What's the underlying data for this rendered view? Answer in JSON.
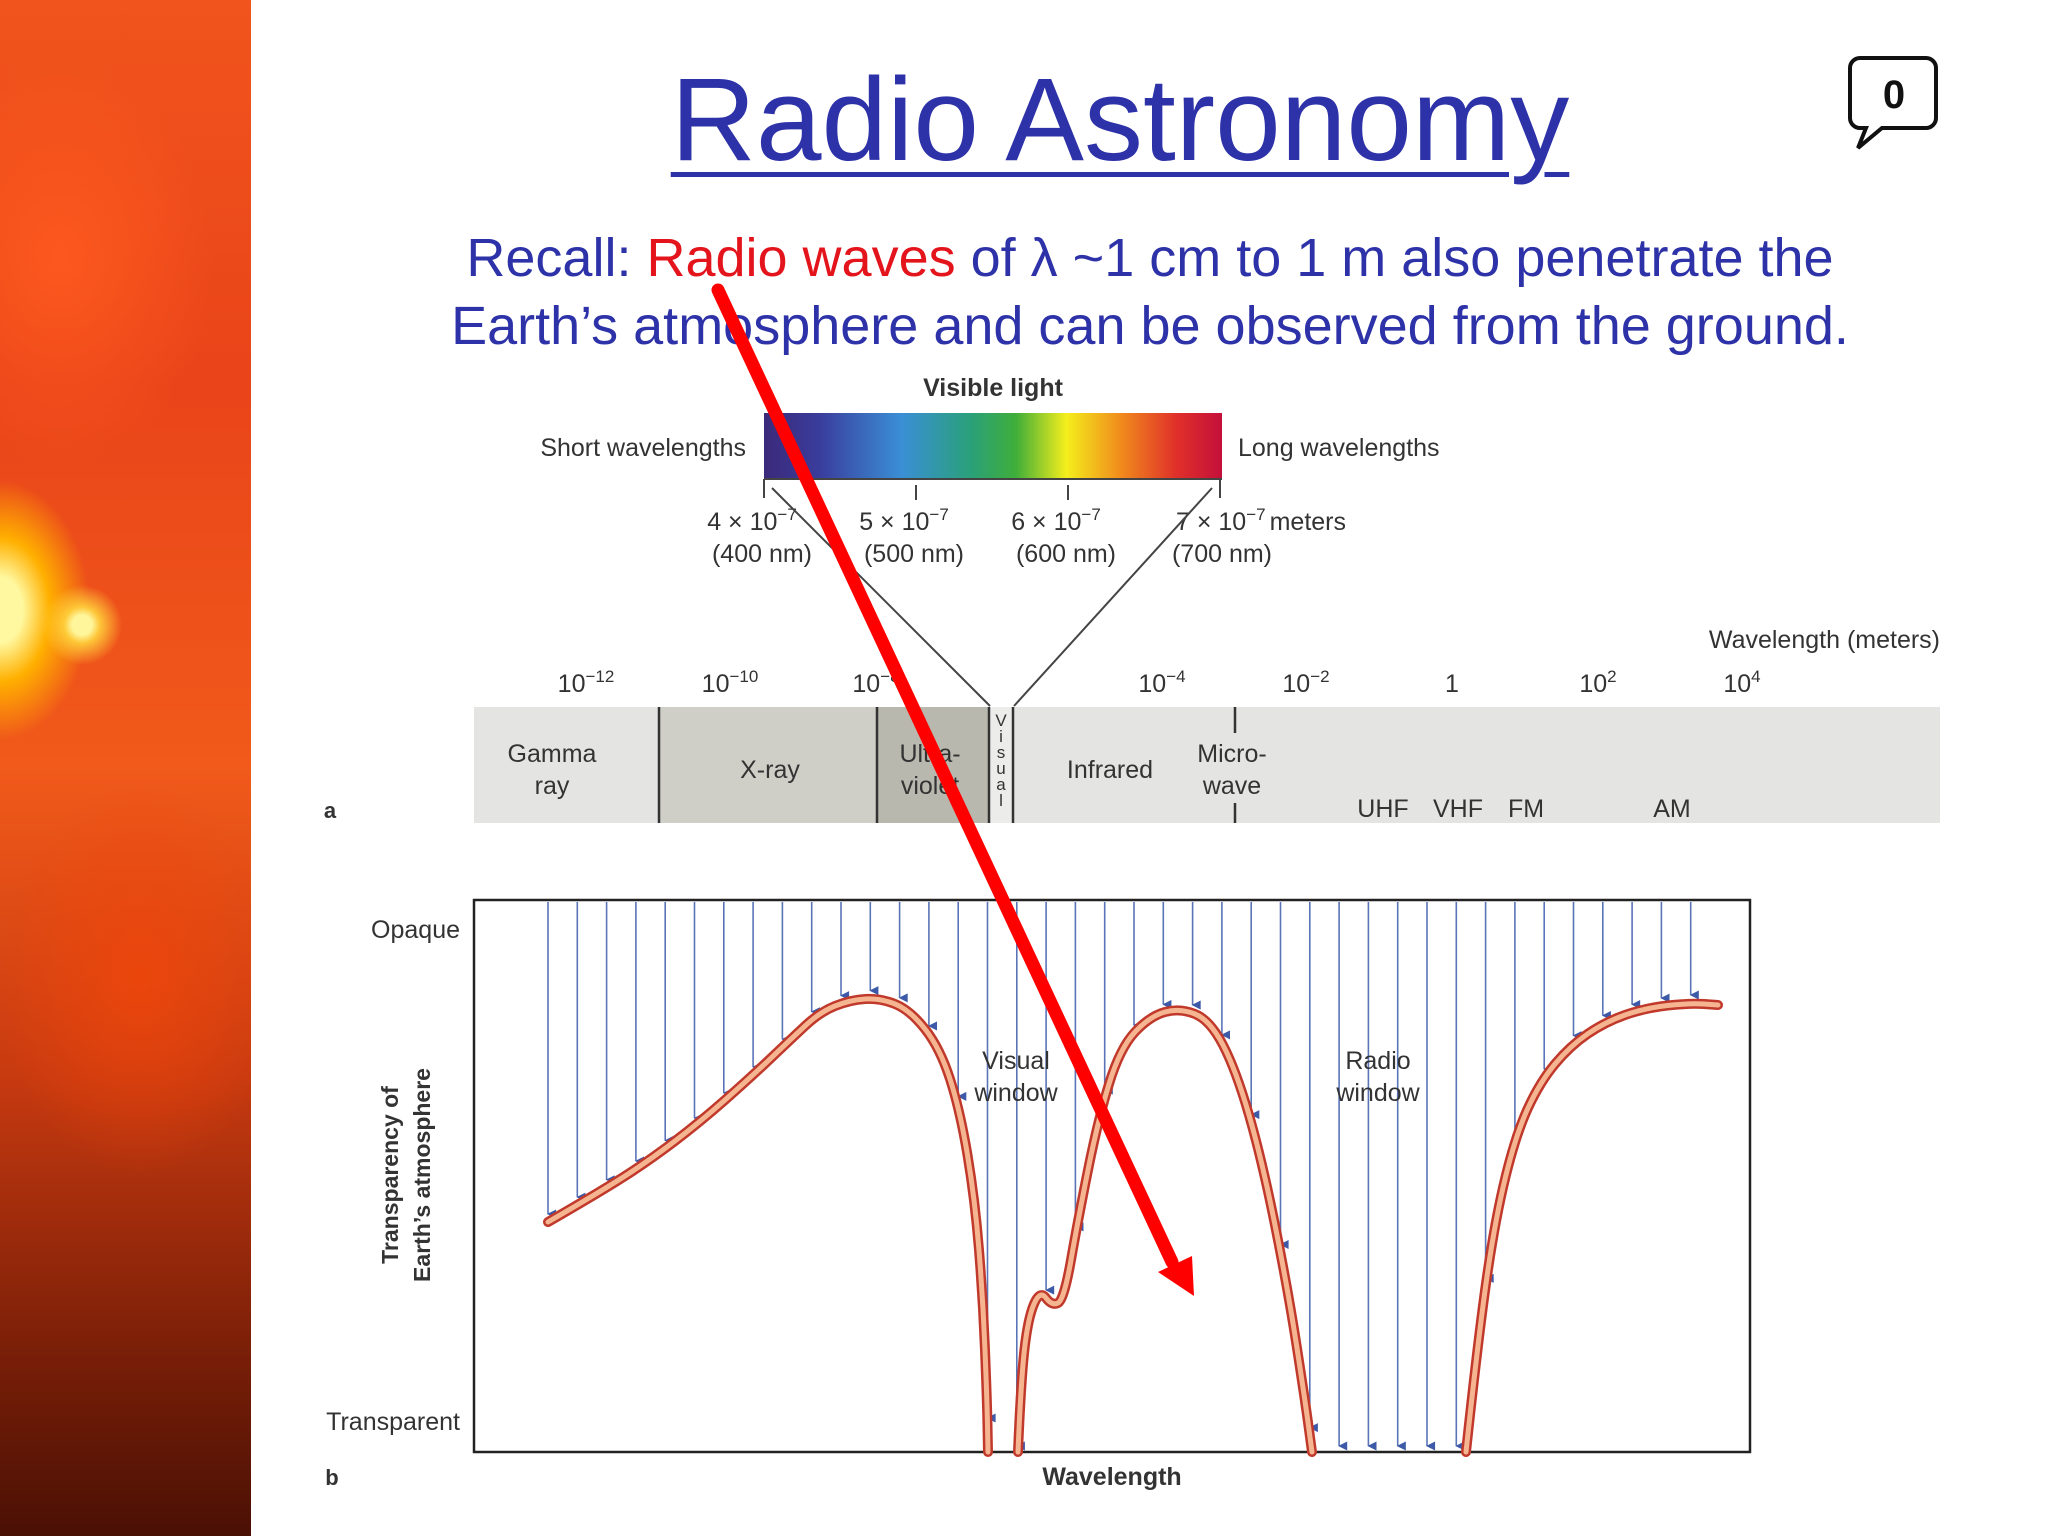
{
  "slide": {
    "title": "Radio Astronomy",
    "badge_count": "0",
    "recall_prefix": "Recall: ",
    "recall_highlight": "Radio waves",
    "recall_rest_line1": " of λ ~1 cm to 1 m also penetrate the",
    "recall_line2": "Earth’s atmosphere and can be observed from the ground."
  },
  "figure_a": {
    "panel_label": "a",
    "visible_light_label": "Visible light",
    "short_label": "Short wavelengths",
    "long_label": "Long wavelengths",
    "visible_ticks": [
      {
        "value": "4 × 10",
        "exp": "−7",
        "nm": "(400 nm)"
      },
      {
        "value": "5 × 10",
        "exp": "−7",
        "nm": "(500 nm)"
      },
      {
        "value": "6 × 10",
        "exp": "−7",
        "nm": "(600 nm)"
      },
      {
        "value": "7 × 10",
        "exp": "−7",
        "nm": "(700 nm)",
        "unit": "meters"
      }
    ],
    "wavelength_axis_label": "Wavelength (meters)",
    "scale_ticks": [
      {
        "base": "10",
        "exp": "−12"
      },
      {
        "base": "10",
        "exp": "−10"
      },
      {
        "base": "10",
        "exp": "−8"
      },
      {
        "base": "10",
        "exp": "−4"
      },
      {
        "base": "10",
        "exp": "−2"
      },
      {
        "base": "1",
        "exp": ""
      },
      {
        "base": "10",
        "exp": "2"
      },
      {
        "base": "10",
        "exp": "4"
      }
    ],
    "bands": {
      "gamma_1": "Gamma",
      "gamma_2": "ray",
      "xray": "X-ray",
      "uv_1": "Ultra-",
      "uv_2": "violet",
      "visual_letters": [
        "V",
        "i",
        "s",
        "u",
        "a",
        "l"
      ],
      "infrared": "Infrared",
      "micro_1": "Micro-",
      "micro_2": "wave",
      "radio_bands": [
        "UHF",
        "VHF",
        "FM",
        "AM"
      ]
    }
  },
  "figure_b": {
    "panel_label": "b",
    "opaque_label": "Opaque",
    "transparent_label": "Transparent",
    "y_axis_line1": "Transparency of",
    "y_axis_line2": "Earth’s atmosphere",
    "x_axis_label": "Wavelength",
    "visual_window_1": "Visual",
    "visual_window_2": "window",
    "radio_window_1": "Radio",
    "radio_window_2": "window"
  },
  "colors": {
    "title": "#2e32a8",
    "highlight": "#e4141c",
    "annotation_arrow": "#ff0000",
    "curve": "#f4a27c",
    "curve_edge": "#c0392b",
    "ray_arrows": "#3d5aa8"
  }
}
